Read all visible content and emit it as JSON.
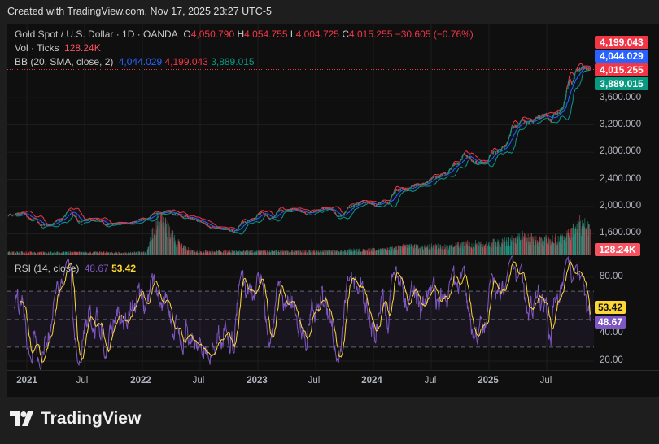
{
  "caption": "Created with TradingView.com, Nov 17, 2025 23:27 UTC-5",
  "legend": {
    "symbol": "Gold Spot / U.S. Dollar · 1D · OANDA",
    "o_label": "O",
    "open": "4,050.790",
    "h_label": "H",
    "high": "4,054.755",
    "l_label": "L",
    "low": "4,004.725",
    "c_label": "C",
    "close": "4,015.255",
    "change": "−30.605 (−0.76%)",
    "vol_label": "Vol · Ticks",
    "vol_value": "128.24K",
    "bb_label": "BB (20, SMA, close, 2)",
    "bb_basis": "4,044.029",
    "bb_upper": "4,199.043",
    "bb_lower": "3,889.015",
    "rsi_label": "RSI (14, close)",
    "rsi_value": "48.67",
    "rsi_ma": "53.42"
  },
  "badges": {
    "upper": "4,199.043",
    "basis": "4,044.029",
    "close": "4,015.255",
    "lower": "3,889.015",
    "volume": "128.24K",
    "rsi_ma": "53.42",
    "rsi": "48.67"
  },
  "price_axis": [
    "3,600.000",
    "3,200.000",
    "2,800.000",
    "2,400.000",
    "2,000.000",
    "1,600.000"
  ],
  "rsi_axis": [
    "80.00",
    "40.00",
    "20.00"
  ],
  "time_axis": [
    "2021",
    "Jul",
    "2022",
    "Jul",
    "2023",
    "Jul",
    "2024",
    "Jul",
    "2025",
    "Jul"
  ],
  "logo_text": "TradingView",
  "colors": {
    "up": "#089981",
    "down": "#f23645",
    "bb_basis": "#2962ff",
    "bb_upper": "#f23645",
    "bb_lower": "#089981",
    "rsi": "#7e57c2",
    "rsi_ma": "#fdd835"
  },
  "chart_data": {
    "type": "candlestick",
    "title": "Gold Spot / U.S. Dollar · 1D · OANDA",
    "ylim": [
      1450,
      4450
    ],
    "price_ticks": [
      3600,
      3200,
      2800,
      2400,
      2000,
      1600
    ],
    "rsi_ticks": [
      80,
      40,
      20
    ],
    "rsi_bands": [
      70,
      50,
      30
    ],
    "time_ticks": [
      "2021-01",
      "2021-07",
      "2022-01",
      "2022-07",
      "2023-01",
      "2023-07",
      "2024-01",
      "2024-07",
      "2025-01",
      "2025-07"
    ],
    "monthly": {
      "months": [
        "2020-11",
        "2020-12",
        "2021-01",
        "2021-02",
        "2021-03",
        "2021-04",
        "2021-05",
        "2021-06",
        "2021-07",
        "2021-08",
        "2021-09",
        "2021-10",
        "2021-11",
        "2021-12",
        "2022-01",
        "2022-02",
        "2022-03",
        "2022-04",
        "2022-05",
        "2022-06",
        "2022-07",
        "2022-08",
        "2022-09",
        "2022-10",
        "2022-11",
        "2022-12",
        "2023-01",
        "2023-02",
        "2023-03",
        "2023-04",
        "2023-05",
        "2023-06",
        "2023-07",
        "2023-08",
        "2023-09",
        "2023-10",
        "2023-11",
        "2023-12",
        "2024-01",
        "2024-02",
        "2024-03",
        "2024-04",
        "2024-05",
        "2024-06",
        "2024-07",
        "2024-08",
        "2024-09",
        "2024-10",
        "2024-11",
        "2024-12",
        "2025-01",
        "2025-02",
        "2025-03",
        "2025-04",
        "2025-05",
        "2025-06",
        "2025-07",
        "2025-08",
        "2025-09",
        "2025-10",
        "2025-11"
      ],
      "close": [
        1870,
        1880,
        1850,
        1735,
        1710,
        1770,
        1900,
        1770,
        1815,
        1815,
        1745,
        1785,
        1775,
        1810,
        1795,
        1910,
        1945,
        1895,
        1840,
        1810,
        1765,
        1710,
        1660,
        1635,
        1770,
        1825,
        1930,
        1830,
        1970,
        1990,
        1965,
        1920,
        1965,
        1940,
        1850,
        1985,
        2035,
        2065,
        2040,
        2045,
        2230,
        2285,
        2325,
        2325,
        2445,
        2500,
        2635,
        2745,
        2655,
        2625,
        2800,
        2860,
        3125,
        3290,
        3290,
        3305,
        3290,
        3450,
        3860,
        4050,
        4015
      ],
      "volume_k": [
        15,
        15,
        14,
        14,
        15,
        14,
        14,
        14,
        13,
        14,
        14,
        13,
        13,
        14,
        15,
        160,
        140,
        70,
        35,
        20,
        18,
        18,
        19,
        18,
        19,
        18,
        19,
        19,
        20,
        19,
        20,
        19,
        20,
        20,
        22,
        24,
        25,
        26,
        28,
        30,
        35,
        45,
        40,
        38,
        45,
        40,
        45,
        55,
        55,
        50,
        60,
        60,
        75,
        90,
        80,
        75,
        70,
        80,
        105,
        140,
        128.24
      ]
    },
    "last": {
      "open": 4050.79,
      "high": 4054.755,
      "low": 4004.725,
      "close": 4015.255,
      "volume_k": 128.24,
      "bb_basis": 4044.029,
      "bb_upper": 4199.043,
      "bb_lower": 3889.015,
      "rsi": 48.67,
      "rsi_ma": 53.42
    }
  }
}
